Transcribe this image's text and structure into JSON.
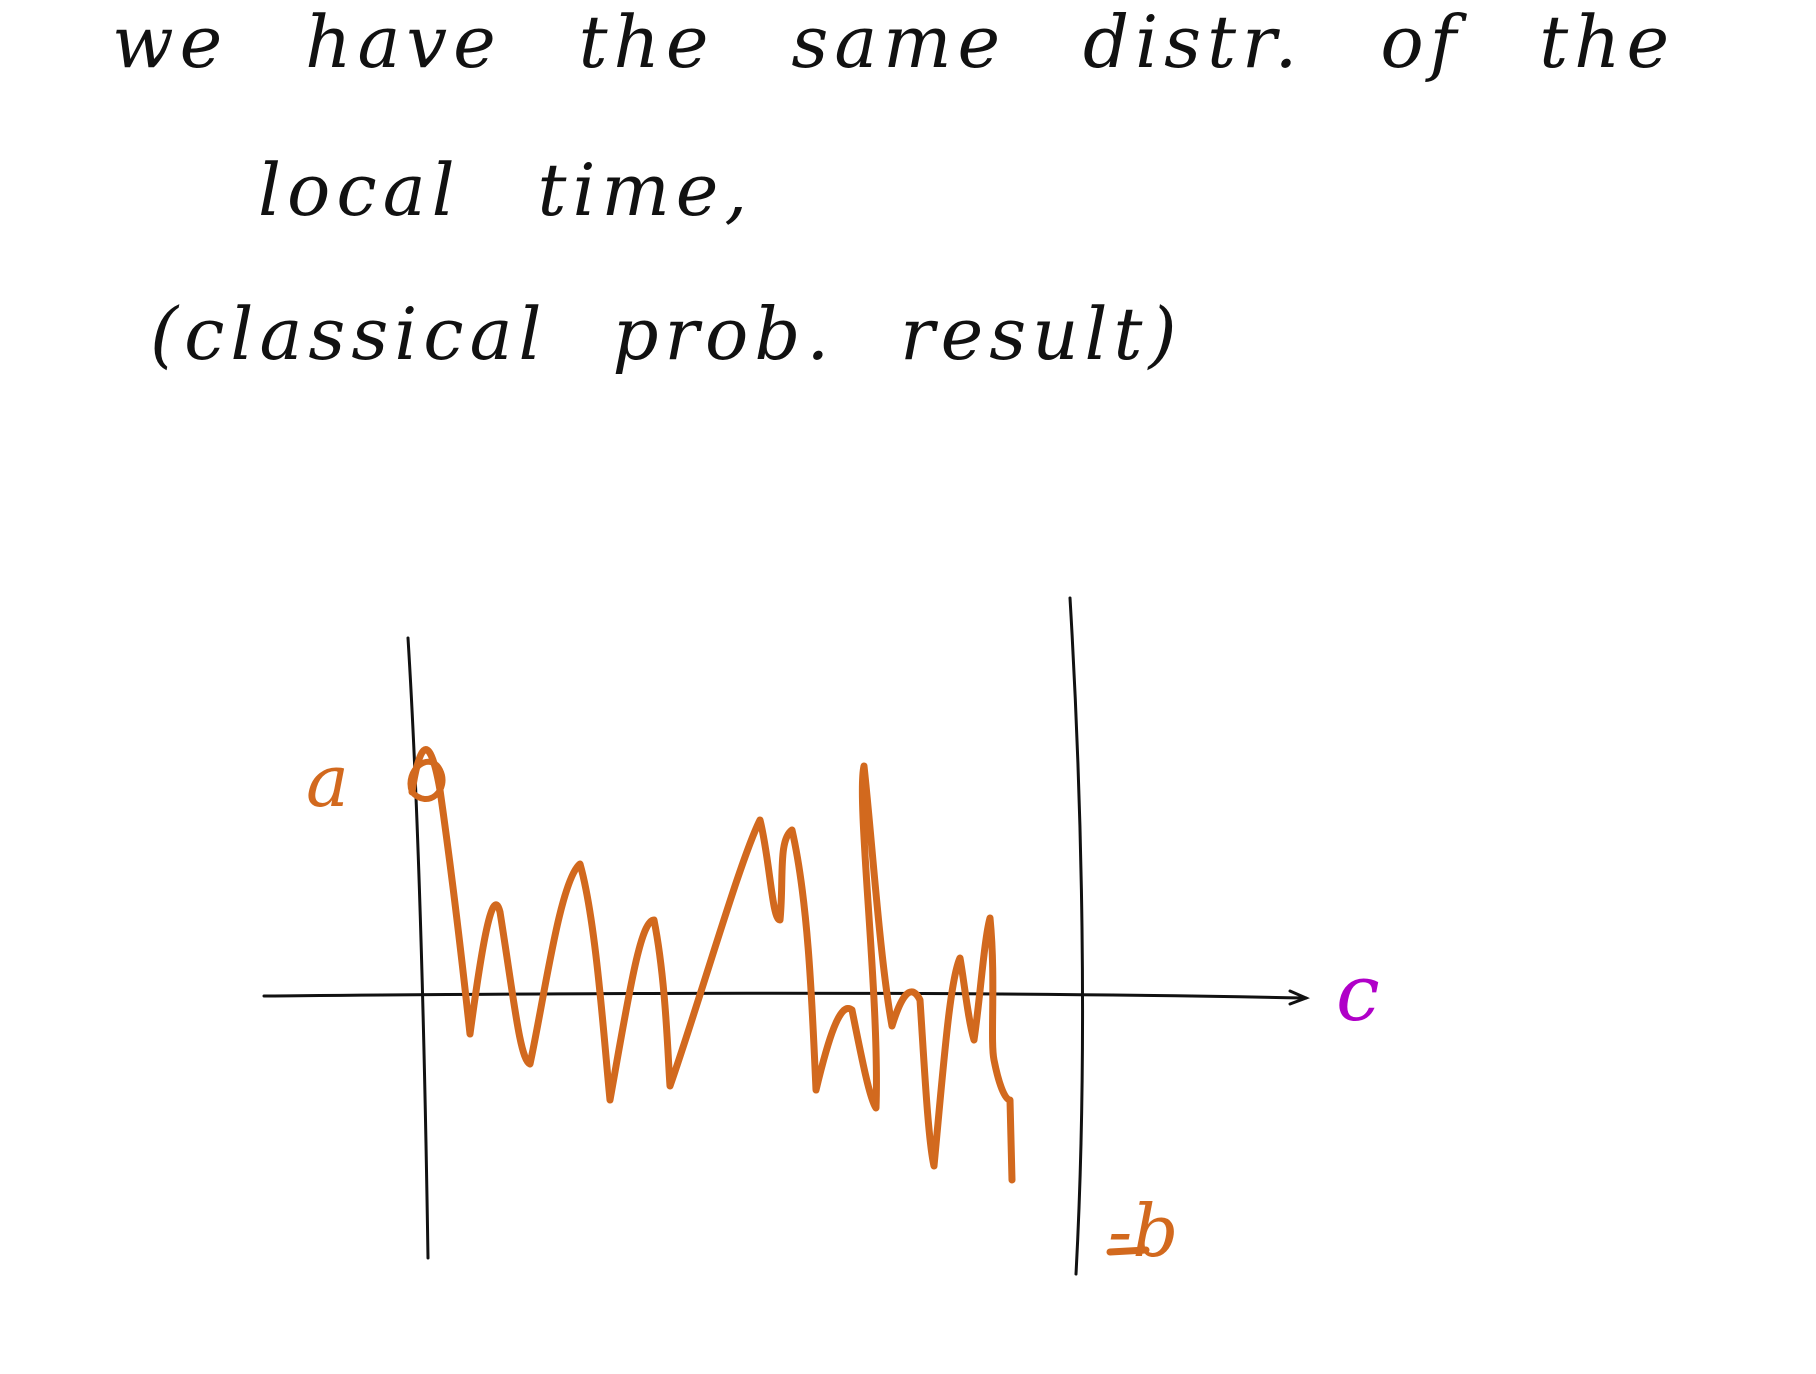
{
  "note": {
    "line1": "we have the same distr. of the",
    "line2": "local time,",
    "line3": "(classical prob. result)"
  },
  "sketch": {
    "label_a": "a",
    "label_b": "-b",
    "label_c": "c",
    "colors": {
      "ink": "#111111",
      "path": "#d2691e",
      "axis_label": "#b000c8"
    }
  }
}
